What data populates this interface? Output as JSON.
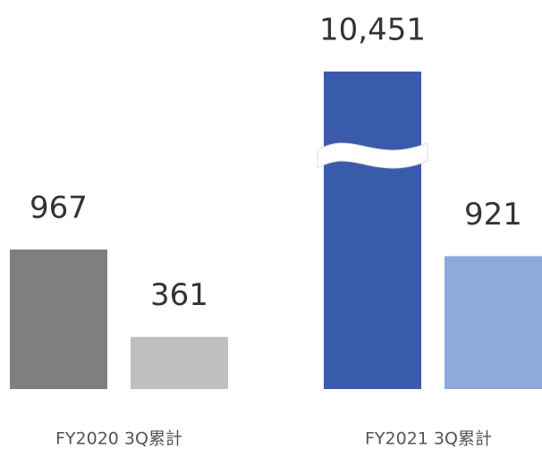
{
  "chart_data": {
    "type": "bar",
    "categories": [
      "FY2020 3Q累計",
      "FY2021 3Q累計"
    ],
    "series": [
      {
        "colors": [
          "#7f7f7f",
          "#3a5ba9"
        ],
        "values": [
          967,
          10451
        ],
        "value_labels": [
          "967",
          "10,451"
        ]
      },
      {
        "colors": [
          "#bfbfbf",
          "#8eaadb"
        ],
        "values": [
          361,
          921
        ],
        "value_labels": [
          "361",
          "921"
        ]
      }
    ],
    "ylim": [
      0,
      2200
    ]
  }
}
